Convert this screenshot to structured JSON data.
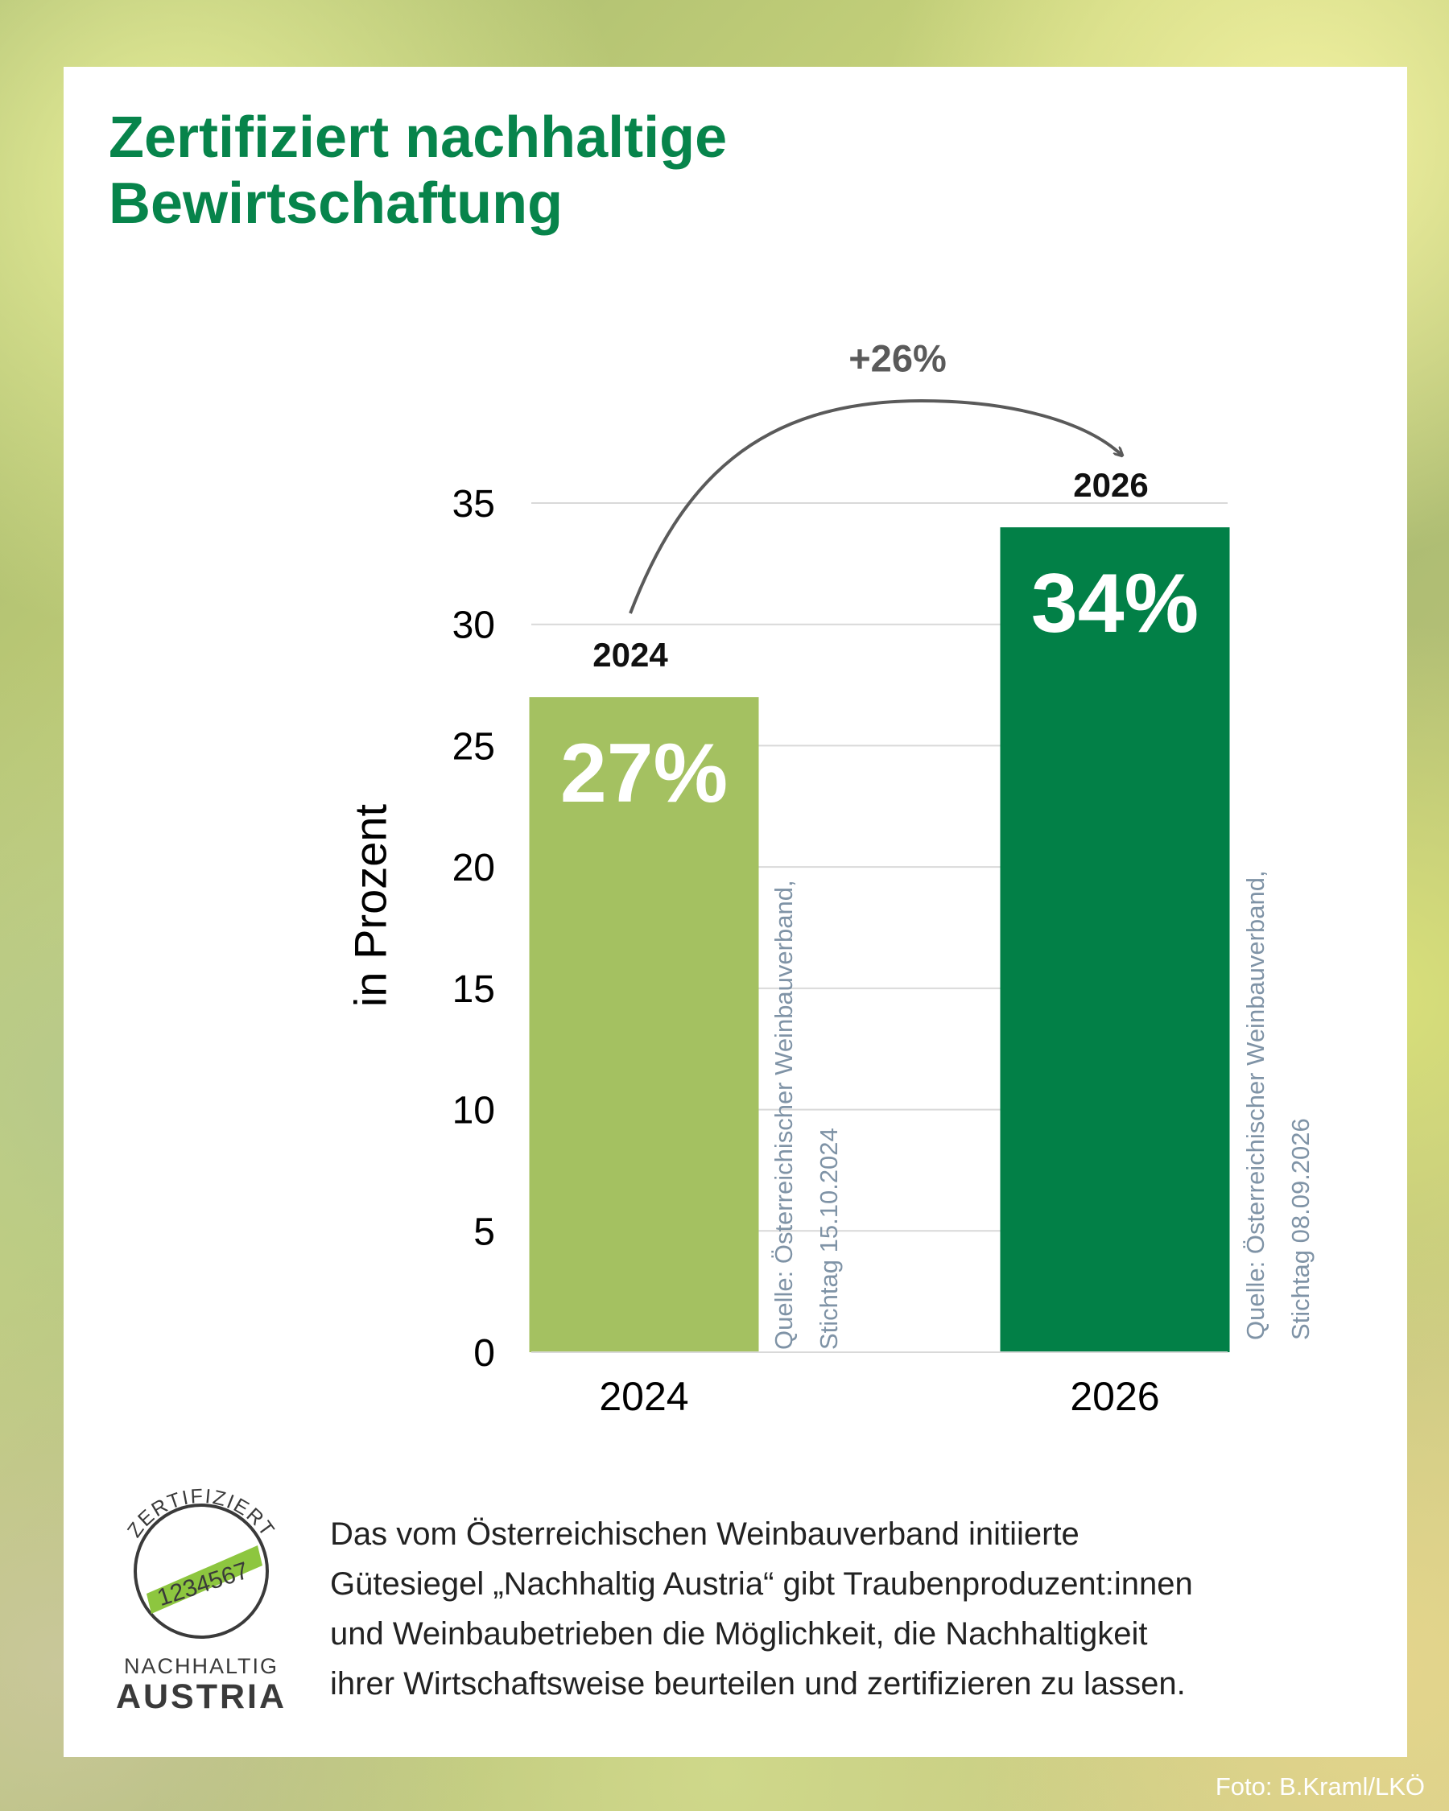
{
  "title_line1": "Zertifiziert nachhaltige",
  "title_line2": "Bewirtschaftung",
  "growth_label": "+26%",
  "chart_data": {
    "type": "bar",
    "categories": [
      "2024",
      "2026"
    ],
    "values": [
      27,
      34
    ],
    "value_labels": [
      "27%",
      "34%"
    ],
    "bar_top_labels": [
      "2024",
      "2026"
    ],
    "sources": [
      [
        "Quelle: Österreichischer Weinbauverband,",
        "Stichtag 15.10.2024"
      ],
      [
        "Quelle: Österreichischer Weinbauverband,",
        "Stichtag 08.09.2026"
      ]
    ],
    "bar_colors": [
      "#a4c161",
      "#028047"
    ],
    "ylabel": "in Prozent",
    "ylim": [
      0,
      35
    ],
    "yticks": [
      0,
      5,
      10,
      15,
      20,
      25,
      30,
      35
    ],
    "grid": true
  },
  "logo": {
    "arc_text": "ZERTIFIZIERT",
    "number": "1234567",
    "line1": "NACHHALTIG",
    "line2": "AUSTRIA"
  },
  "description_lines": [
    "Das vom Österreichischen Weinbauverband initiierte",
    "Gütesiegel „Nachhaltig Austria“ gibt Traubenproduzent:innen",
    "und Weinbaubetrieben die Möglichkeit, die Nachhaltigkeit",
    "ihrer Wirtschaftsweise beurteilen und zertifizieren zu lassen."
  ],
  "photo_credit": "Foto: B.Kraml/LKÖ"
}
